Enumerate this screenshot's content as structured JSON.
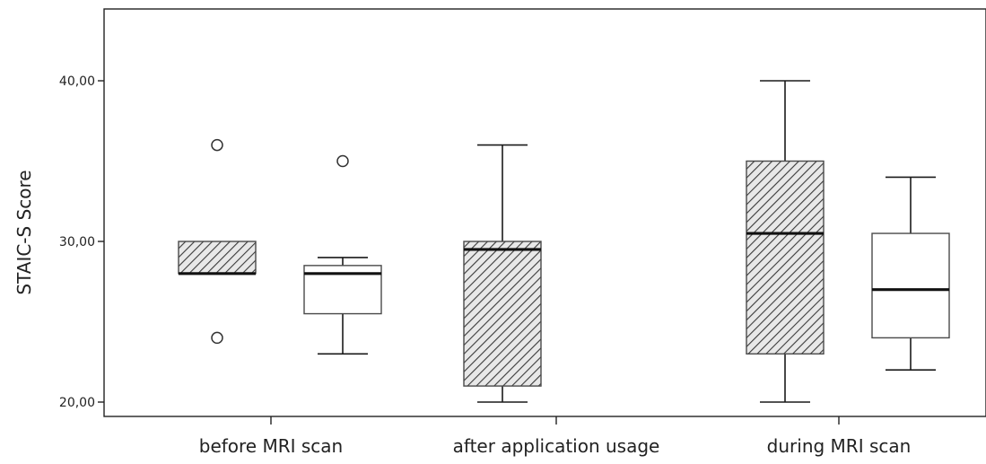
{
  "chart_data": {
    "type": "boxplot",
    "ylabel": "STAIC-S Score",
    "yticks": [
      {
        "value": 20,
        "label": "20,00"
      },
      {
        "value": 30,
        "label": "30,00"
      },
      {
        "value": 40,
        "label": "40,00"
      }
    ],
    "ylim": [
      19,
      45
    ],
    "categories": [
      "before MRI scan",
      "after application usage",
      "during MRI scan"
    ],
    "series": [
      {
        "pattern": "hatched",
        "boxes": [
          {
            "category": "before MRI scan",
            "whisker_low": 28,
            "q1": 28,
            "median": 28,
            "q3": 30,
            "whisker_high": 30,
            "outliers": [
              36,
              24
            ]
          },
          {
            "category": "after application usage",
            "whisker_low": 20,
            "q1": 21,
            "median": 29.5,
            "q3": 30,
            "whisker_high": 36,
            "outliers": []
          },
          {
            "category": "during MRI scan",
            "whisker_low": 20,
            "q1": 23,
            "median": 30.5,
            "q3": 35,
            "whisker_high": 40,
            "outliers": []
          }
        ]
      },
      {
        "pattern": "plain",
        "boxes": [
          {
            "category": "before MRI scan",
            "whisker_low": 23,
            "q1": 25.5,
            "median": 28,
            "q3": 28.5,
            "whisker_high": 29,
            "outliers": [
              35
            ]
          },
          {
            "category": "during MRI scan",
            "whisker_low": 22,
            "q1": 24,
            "median": 27,
            "q3": 30.5,
            "whisker_high": 34,
            "outliers": []
          }
        ]
      }
    ],
    "colors": {
      "box_fill_plain": "#ffffff",
      "hatch_background": "#e8e8e8",
      "hatch_line": "#3a3a3a",
      "box_stroke": "#4a4a4a",
      "median": "#111111"
    },
    "grid": false,
    "legend": "none"
  }
}
